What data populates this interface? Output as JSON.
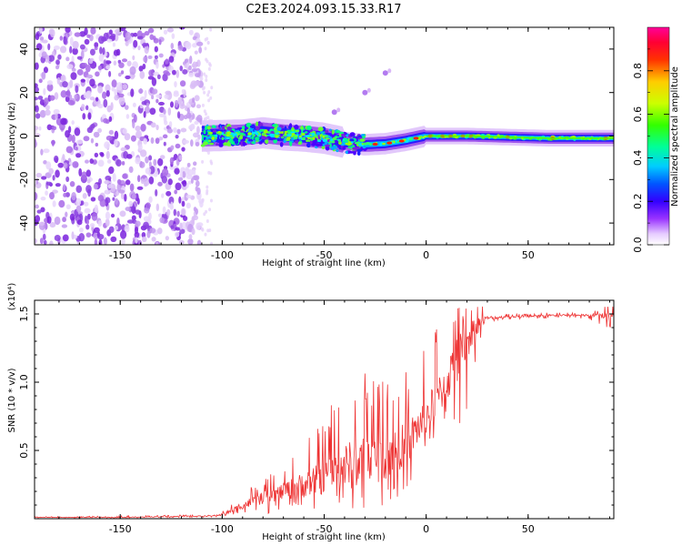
{
  "title": "C2E3.2024.093.15.33.R17",
  "chart_data": [
    {
      "type": "heatmap",
      "name": "spectrogram",
      "xlabel": "Height of straight line (km)",
      "ylabel": "Frequency (Hz)",
      "xlim": [
        -192,
        92
      ],
      "ylim": [
        -50,
        50
      ],
      "xticks": [
        -150,
        -100,
        -50,
        0,
        50
      ],
      "yticks": [
        -40,
        -20,
        0,
        20,
        40
      ],
      "colorbar": {
        "label": "Normalized spectral amplitude",
        "range": [
          0.0,
          1.0
        ],
        "ticks": [
          0.0,
          0.2,
          0.4,
          0.6,
          0.8
        ],
        "colormap": "rainbow",
        "colors": [
          "#ffffff",
          "#d8b4f4",
          "#8a2be2",
          "#2a00ff",
          "#0000ff",
          "#00ccff",
          "#00ff66",
          "#66ff00",
          "#ffff00",
          "#ff8800",
          "#ff0000",
          "#ff0099"
        ]
      },
      "regions": [
        {
          "description": "noise",
          "x_range": [
            -192,
            -110
          ],
          "freq_range": [
            -50,
            50
          ],
          "amplitude": 0.05
        },
        {
          "description": "signal-trace",
          "x_range": [
            -110,
            92
          ],
          "center_freq": [
            [
              -110,
              0
            ],
            [
              -90,
              0.5
            ],
            [
              -80,
              1.5
            ],
            [
              -70,
              0.5
            ],
            [
              -60,
              0
            ],
            [
              -50,
              -1
            ],
            [
              -40,
              -3
            ],
            [
              -30,
              -4
            ],
            [
              -20,
              -3.5
            ],
            [
              -10,
              -2
            ],
            [
              0,
              0
            ],
            [
              10,
              0
            ],
            [
              20,
              0
            ],
            [
              40,
              -0.5
            ],
            [
              60,
              -1
            ],
            [
              80,
              -1
            ],
            [
              92,
              -1
            ]
          ]
        },
        {
          "description": "tone",
          "x": -45,
          "freq": 11
        },
        {
          "description": "tone",
          "x": -30,
          "freq": 20
        },
        {
          "description": "tone",
          "x": -20,
          "freq": 29
        }
      ]
    },
    {
      "type": "line",
      "name": "snr",
      "xlabel": "Height of straight line (km)",
      "ylabel": "SNR (10 * v/v)",
      "yscale_label": "(x10⁴)",
      "xlim": [
        -192,
        92
      ],
      "ylim": [
        0,
        1.6
      ],
      "xticks": [
        -150,
        -100,
        -50,
        0,
        50
      ],
      "yticks": [
        0.5,
        1.0,
        1.5
      ],
      "ytick_labels": [
        "0.5",
        "1.0",
        "1.5"
      ],
      "color": "#ee3333",
      "envelope": {
        "x": [
          -192,
          -150,
          -105,
          -100,
          -95,
          -90,
          -80,
          -70,
          -60,
          -50,
          -40,
          -30,
          -20,
          -10,
          0,
          10,
          15,
          20,
          25,
          30,
          40,
          50,
          60,
          70,
          80,
          92
        ],
        "mean": [
          0.01,
          0.01,
          0.02,
          0.03,
          0.06,
          0.1,
          0.15,
          0.2,
          0.25,
          0.3,
          0.38,
          0.42,
          0.45,
          0.55,
          0.75,
          1.0,
          1.15,
          1.3,
          1.42,
          1.47,
          1.48,
          1.48,
          1.49,
          1.49,
          1.49,
          1.49
        ],
        "max": [
          0.015,
          0.02,
          0.03,
          0.06,
          0.12,
          0.2,
          0.28,
          0.4,
          0.6,
          0.75,
          1.05,
          1.1,
          1.05,
          1.1,
          1.25,
          1.55,
          1.55,
          1.58,
          1.6,
          1.52,
          1.5,
          1.5,
          1.51,
          1.51,
          1.51,
          1.58
        ],
        "min": [
          0.005,
          0.005,
          0.01,
          0.01,
          0.02,
          0.03,
          0.03,
          0.05,
          0.05,
          0.06,
          0.05,
          0.05,
          0.1,
          0.2,
          0.5,
          0.7,
          0.45,
          0.8,
          1.2,
          1.44,
          1.46,
          1.46,
          1.47,
          1.47,
          1.46,
          1.38
        ]
      }
    }
  ]
}
